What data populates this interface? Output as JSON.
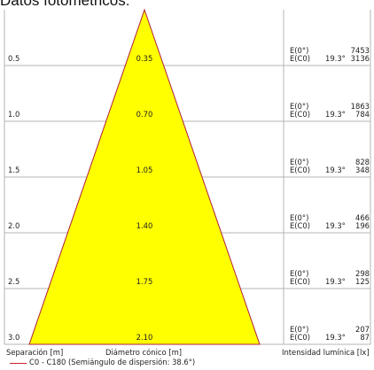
{
  "title": "Datos fotométricos:",
  "rows": [
    {
      "separation": "0.5",
      "diameter": "0.35",
      "e_axis_label": "E(0°)",
      "e_c0_label": "E(C0)",
      "angle": "19.3°",
      "e_axis": "7453",
      "e_c0": "3136"
    },
    {
      "separation": "1.0",
      "diameter": "0.70",
      "e_axis_label": "E(0°)",
      "e_c0_label": "E(C0)",
      "angle": "19.3°",
      "e_axis": "1863",
      "e_c0": "784"
    },
    {
      "separation": "1.5",
      "diameter": "1.05",
      "e_axis_label": "E(0°)",
      "e_c0_label": "E(C0)",
      "angle": "19.3°",
      "e_axis": "828",
      "e_c0": "348"
    },
    {
      "separation": "2.0",
      "diameter": "1.40",
      "e_axis_label": "E(0°)",
      "e_c0_label": "E(C0)",
      "angle": "19.3°",
      "e_axis": "466",
      "e_c0": "196"
    },
    {
      "separation": "2.5",
      "diameter": "1.75",
      "e_axis_label": "E(0°)",
      "e_c0_label": "E(C0)",
      "angle": "19.3°",
      "e_axis": "298",
      "e_c0": "125"
    },
    {
      "separation": "3.0",
      "diameter": "2.10",
      "e_axis_label": "E(0°)",
      "e_c0_label": "E(C0)",
      "angle": "19.3°",
      "e_axis": "207",
      "e_c0": "87"
    }
  ],
  "footer": {
    "separation_label": "Separación [m]",
    "diameter_label": "Diámetro cónico [m]",
    "intensity_label": "Intensidad lumínica [lx]",
    "legend": "C0 - C180 (Semiángulo de dispersión: 38.6°)"
  },
  "colors": {
    "cone_fill": "#ffff00",
    "cone_edge": "#b01f3a",
    "legend_line": "#d01f2d",
    "grid": "#b4b4b4"
  }
}
